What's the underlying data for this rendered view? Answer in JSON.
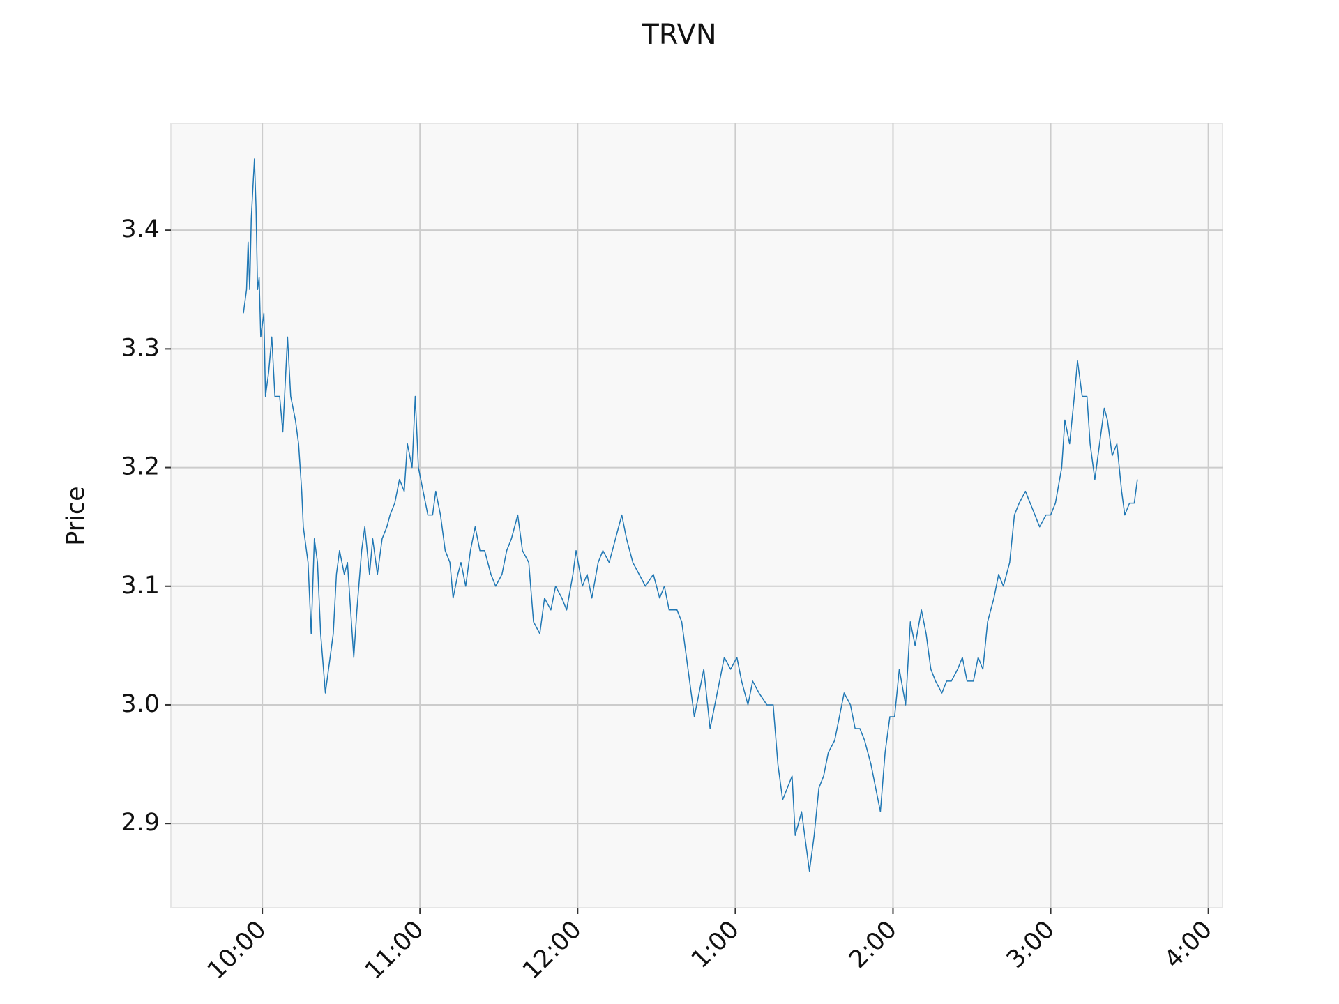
{
  "chart_data": {
    "type": "line",
    "title": "TRVN",
    "ylabel": "Price",
    "color": "#1f77b4",
    "grid": true,
    "xlim": [
      9.42,
      16.09
    ],
    "xticks": [
      {
        "value": 10,
        "label": "10:00"
      },
      {
        "value": 11,
        "label": "11:00"
      },
      {
        "value": 12,
        "label": "12:00"
      },
      {
        "value": 13,
        "label": "1:00"
      },
      {
        "value": 14,
        "label": "2:00"
      },
      {
        "value": 15,
        "label": "3:00"
      },
      {
        "value": 16,
        "label": "4:00"
      }
    ],
    "ylim": [
      2.829,
      3.49
    ],
    "yticks": [
      2.9,
      {
        "value": 3,
        "label": "3.0"
      },
      3.1,
      3.2,
      3.3,
      3.4
    ],
    "x": [
      9.88,
      9.9,
      9.91,
      9.92,
      9.93,
      9.95,
      9.96,
      9.97,
      9.98,
      9.99,
      10.01,
      10.02,
      10.04,
      10.06,
      10.08,
      10.11,
      10.13,
      10.16,
      10.18,
      10.21,
      10.23,
      10.25,
      10.26,
      10.29,
      10.31,
      10.33,
      10.35,
      10.37,
      10.4,
      10.42,
      10.45,
      10.47,
      10.49,
      10.52,
      10.54,
      10.56,
      10.58,
      10.6,
      10.63,
      10.65,
      10.68,
      10.7,
      10.73,
      10.76,
      10.79,
      10.81,
      10.84,
      10.87,
      10.9,
      10.92,
      10.95,
      10.97,
      10.99,
      11.02,
      11.05,
      11.08,
      11.1,
      11.13,
      11.16,
      11.19,
      11.21,
      11.24,
      11.26,
      11.29,
      11.32,
      11.35,
      11.38,
      11.41,
      11.45,
      11.48,
      11.52,
      11.55,
      11.58,
      11.62,
      11.65,
      11.69,
      11.72,
      11.76,
      11.79,
      11.83,
      11.86,
      11.9,
      11.93,
      11.97,
      11.99,
      12.03,
      12.06,
      12.09,
      12.13,
      12.16,
      12.2,
      12.24,
      12.28,
      12.31,
      12.35,
      12.39,
      12.43,
      12.48,
      12.52,
      12.55,
      12.58,
      12.63,
      12.66,
      12.69,
      12.71,
      12.74,
      12.77,
      12.8,
      12.84,
      12.87,
      12.9,
      12.93,
      12.97,
      13.01,
      13.04,
      13.08,
      13.11,
      13.15,
      13.2,
      13.24,
      13.27,
      13.3,
      13.33,
      13.36,
      13.38,
      13.42,
      13.45,
      13.47,
      13.5,
      13.53,
      13.56,
      13.59,
      13.63,
      13.66,
      13.69,
      13.73,
      13.76,
      13.79,
      13.82,
      13.86,
      13.89,
      13.92,
      13.95,
      13.98,
      14.01,
      14.04,
      14.08,
      14.11,
      14.14,
      14.18,
      14.21,
      14.24,
      14.27,
      14.31,
      14.34,
      14.37,
      14.41,
      14.44,
      14.47,
      14.51,
      14.54,
      14.57,
      14.6,
      14.64,
      14.67,
      14.7,
      14.74,
      14.77,
      14.8,
      14.84,
      14.87,
      14.9,
      14.93,
      14.97,
      15.0,
      15.03,
      15.07,
      15.09,
      15.12,
      15.15,
      15.17,
      15.2,
      15.23,
      15.25,
      15.28,
      15.31,
      15.34,
      15.36,
      15.39,
      15.42,
      15.45,
      15.47,
      15.5,
      15.53,
      15.55
    ],
    "values": [
      3.33,
      3.35,
      3.39,
      3.35,
      3.41,
      3.46,
      3.42,
      3.35,
      3.36,
      3.31,
      3.33,
      3.26,
      3.28,
      3.31,
      3.26,
      3.26,
      3.23,
      3.31,
      3.26,
      3.24,
      3.22,
      3.18,
      3.15,
      3.12,
      3.06,
      3.14,
      3.12,
      3.06,
      3.01,
      3.03,
      3.06,
      3.11,
      3.13,
      3.11,
      3.12,
      3.08,
      3.04,
      3.08,
      3.13,
      3.15,
      3.11,
      3.14,
      3.11,
      3.14,
      3.15,
      3.16,
      3.17,
      3.19,
      3.18,
      3.22,
      3.2,
      3.26,
      3.2,
      3.18,
      3.16,
      3.16,
      3.18,
      3.16,
      3.13,
      3.12,
      3.09,
      3.11,
      3.12,
      3.1,
      3.13,
      3.15,
      3.13,
      3.13,
      3.11,
      3.1,
      3.11,
      3.13,
      3.14,
      3.16,
      3.13,
      3.12,
      3.07,
      3.06,
      3.09,
      3.08,
      3.1,
      3.09,
      3.08,
      3.11,
      3.13,
      3.1,
      3.11,
      3.09,
      3.12,
      3.13,
      3.12,
      3.14,
      3.16,
      3.14,
      3.12,
      3.11,
      3.1,
      3.11,
      3.09,
      3.1,
      3.08,
      3.08,
      3.07,
      3.04,
      3.02,
      2.99,
      3.01,
      3.03,
      2.98,
      3.0,
      3.02,
      3.04,
      3.03,
      3.04,
      3.02,
      3.0,
      3.02,
      3.01,
      3.0,
      3.0,
      2.95,
      2.92,
      2.93,
      2.94,
      2.89,
      2.91,
      2.88,
      2.86,
      2.89,
      2.93,
      2.94,
      2.96,
      2.97,
      2.99,
      3.01,
      3.0,
      2.98,
      2.98,
      2.97,
      2.95,
      2.93,
      2.91,
      2.96,
      2.99,
      2.99,
      3.03,
      3.0,
      3.07,
      3.05,
      3.08,
      3.06,
      3.03,
      3.02,
      3.01,
      3.02,
      3.02,
      3.03,
      3.04,
      3.02,
      3.02,
      3.04,
      3.03,
      3.07,
      3.09,
      3.11,
      3.1,
      3.12,
      3.16,
      3.17,
      3.18,
      3.17,
      3.16,
      3.15,
      3.16,
      3.16,
      3.17,
      3.2,
      3.24,
      3.22,
      3.26,
      3.29,
      3.26,
      3.26,
      3.22,
      3.19,
      3.22,
      3.25,
      3.24,
      3.21,
      3.22,
      3.18,
      3.16,
      3.17,
      3.17,
      3.19
    ]
  }
}
